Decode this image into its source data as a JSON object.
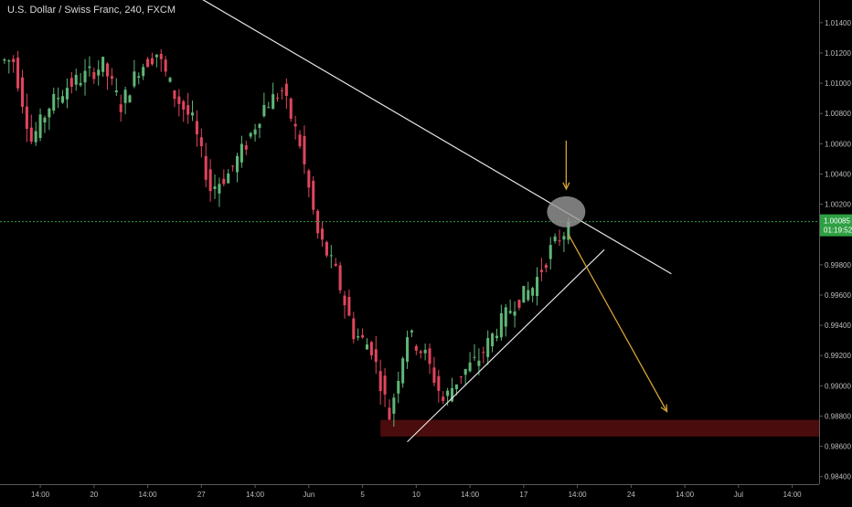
{
  "header": {
    "title": "U.S. Dollar / Swiss Franc, 240, FXCM"
  },
  "colors": {
    "background": "#000000",
    "bull": "#5fb676",
    "bear": "#e0455c",
    "trendline": "#e6e6e6",
    "projection_arrow": "#d4a134",
    "support_zone": "#4a0c0c",
    "last_price_line": "#2f9a48",
    "price_badge": "#2ea043",
    "axis_text": "#bdbdbd",
    "axis_line": "#5a5a5a"
  },
  "price_badge": {
    "price": "1.00085",
    "countdown": "01:19:52"
  },
  "chart_data": {
    "type": "candlestick",
    "symbol": "U.S. Dollar / Swiss Franc",
    "interval": "240",
    "source": "FXCM",
    "grid": false,
    "ylim": [
      0.9835,
      1.0155
    ],
    "y_ticks": [
      1.014,
      1.012,
      1.01,
      1.008,
      1.006,
      1.004,
      1.002,
      0.998,
      0.996,
      0.994,
      0.992,
      0.99,
      0.988,
      0.986,
      0.984
    ],
    "y_tick_labels": [
      "1.01400",
      "1.01200",
      "1.01000",
      "1.00800",
      "1.00600",
      "1.00400",
      "1.00200",
      "0.99800",
      "0.99600",
      "0.99400",
      "0.99200",
      "0.99000",
      "0.98800",
      "0.98600",
      "0.98400"
    ],
    "x_tick_labels": [
      "14:00",
      "20",
      "14:00",
      "27",
      "14:00",
      "Jun",
      "5",
      "10",
      "14:00",
      "17",
      "14:00",
      "24",
      "14:00",
      "Jul",
      "14:00"
    ],
    "x_tick_positions": [
      6,
      18,
      30,
      42,
      54,
      66,
      78,
      90,
      102,
      114,
      126,
      138,
      150,
      162,
      174
    ],
    "x_range": [
      -3,
      180
    ],
    "last_price": 1.00085,
    "anchor_points": [
      [
        0,
        1.0115
      ],
      [
        4,
        1.0062
      ],
      [
        8,
        1.0085
      ],
      [
        12,
        1.0098
      ],
      [
        16,
        1.0105
      ],
      [
        20,
        1.0112
      ],
      [
        24,
        1.0085
      ],
      [
        28,
        1.011
      ],
      [
        32,
        1.012
      ],
      [
        36,
        1.0092
      ],
      [
        40,
        1.0075
      ],
      [
        44,
        1.003
      ],
      [
        48,
        1.004
      ],
      [
        52,
        1.006
      ],
      [
        56,
        1.0085
      ],
      [
        60,
        1.0095
      ],
      [
        64,
        1.006
      ],
      [
        68,
        1.0
      ],
      [
        72,
        0.9975
      ],
      [
        76,
        0.9935
      ],
      [
        80,
        0.9925
      ],
      [
        84,
        0.988
      ],
      [
        88,
        0.9935
      ],
      [
        92,
        0.992
      ],
      [
        96,
        0.989
      ],
      [
        100,
        0.9908
      ],
      [
        104,
        0.9918
      ],
      [
        108,
        0.9938
      ],
      [
        112,
        0.9955
      ],
      [
        116,
        0.9965
      ],
      [
        120,
        0.999
      ],
      [
        124,
        1.0006
      ]
    ],
    "drawings": {
      "resistance_line": {
        "from": [
          28,
          1.018
        ],
        "to": [
          147,
          0.9974
        ]
      },
      "support_line": {
        "from": [
          88,
          0.9863
        ],
        "to": [
          132,
          0.999
        ]
      },
      "touch_circle": {
        "x": 123.5,
        "y": 1.0015
      },
      "down_arrow": {
        "x": 123.5,
        "from_y": 1.0062,
        "to_y": 1.003
      },
      "projection_arrow": {
        "from": [
          124,
          1.0
        ],
        "to": [
          146,
          0.9883
        ]
      },
      "support_zone": {
        "x_from": 82,
        "x_to": 180,
        "y_from": 0.98665,
        "y_to": 0.98775
      }
    }
  }
}
